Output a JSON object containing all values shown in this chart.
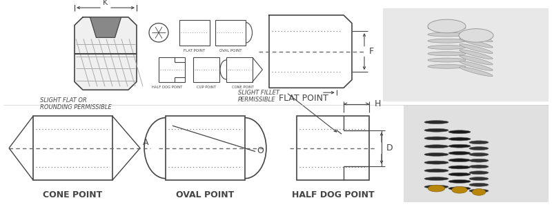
{
  "bg_color": "#ffffff",
  "line_color": "#444444",
  "dashed_color": "#666666",
  "font_size_label": 8,
  "font_size_small": 4.5,
  "font_size_dim": 7,
  "labels": {
    "flat_point": "FLAT POINT",
    "cone_point": "CONE POINT",
    "oval_point": "OVAL POINT",
    "half_dog": "HALF DOG POINT",
    "flat_pt_small": "FLAT POINT",
    "oval_pt_small": "OVAL POINT",
    "half_dog_small": "HALF DOG POINT",
    "cup_small": "CUP POINT",
    "cone_small": "CONE POINT",
    "slight_flat": "SLIGHT FLAT OR\nROUNDING PERMISSIBLE",
    "slight_fillet": "SLIGHT FILLET",
    "permissible": "PERMISSIBLE"
  },
  "dim_labels": {
    "K": "K",
    "F": "F",
    "A": "A",
    "O": "O",
    "H": "H",
    "D": "D"
  }
}
